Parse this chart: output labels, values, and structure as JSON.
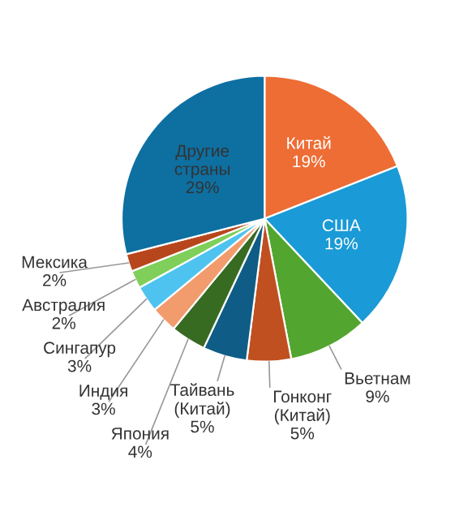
{
  "chart_data": {
    "type": "pie",
    "categories": [
      "Китай",
      "США",
      "Вьетнам",
      "Гонконг\n(Китай)",
      "Тайвань\n(Китай)",
      "Япония",
      "Индия",
      "Сингапур",
      "Австралия",
      "Мексика",
      "Другие\nстраны"
    ],
    "values": [
      19,
      19,
      9,
      5,
      5,
      4,
      3,
      3,
      2,
      2,
      29
    ],
    "value_labels": [
      "19%",
      "19%",
      "9%",
      "5%",
      "5%",
      "4%",
      "3%",
      "3%",
      "2%",
      "2%",
      "29%"
    ],
    "colors": [
      "#ed6d35",
      "#1a9ad6",
      "#52a52e",
      "#c0501f",
      "#0f5d86",
      "#386b22",
      "#f29b6c",
      "#4fc3f0",
      "#7fcf5a",
      "#b8461c",
      "#0e6fa1"
    ]
  }
}
